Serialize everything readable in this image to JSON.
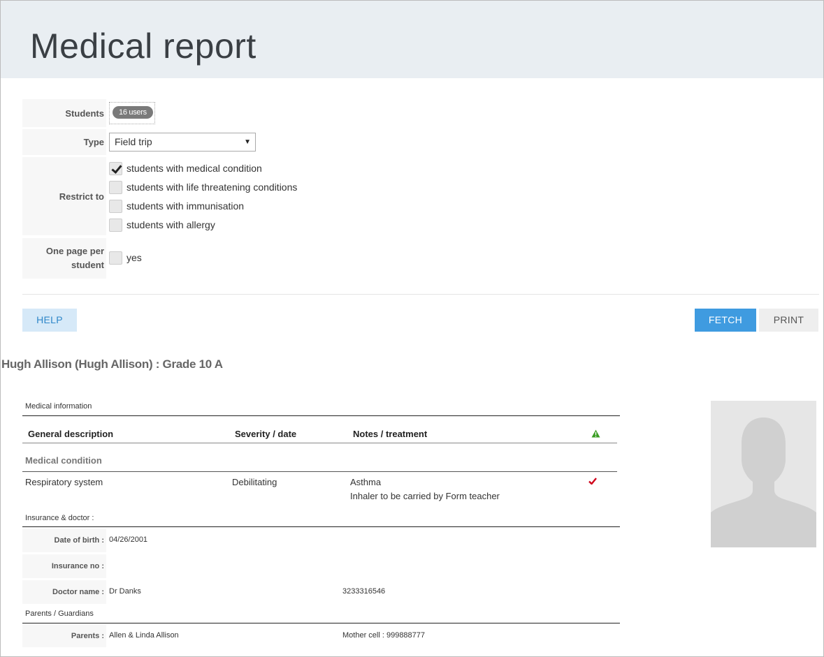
{
  "page": {
    "title": "Medical report"
  },
  "form": {
    "students_label": "Students",
    "students_value": "16 users",
    "type_label": "Type",
    "type_value": "Field trip",
    "restrict_label": "Restrict to",
    "restrict_options": [
      {
        "label": "students with medical condition",
        "checked": true
      },
      {
        "label": "students with life threatening conditions",
        "checked": false
      },
      {
        "label": "students with immunisation",
        "checked": false
      },
      {
        "label": "students with allergy",
        "checked": false
      }
    ],
    "one_page_label": "One page per student",
    "one_page_option": {
      "label": "yes",
      "checked": false
    }
  },
  "buttons": {
    "help": "HELP",
    "fetch": "FETCH",
    "print": "PRINT"
  },
  "student": {
    "title": "Hugh Allison (Hugh Allison) : Grade 10 A",
    "medical_info_label": "Medical information",
    "columns": [
      "General description",
      "Severity / date",
      "Notes / treatment"
    ],
    "section_condition": "Medical condition",
    "rows": [
      {
        "description": "Respiratory system",
        "severity": "Debilitating",
        "notes": "Asthma",
        "treatment": "Inhaler to be carried by Form teacher",
        "flagged": true
      }
    ],
    "insurance_label": "Insurance & doctor :",
    "dob_label": "Date of birth :",
    "dob_value": "04/26/2001",
    "insurance_no_label": "Insurance no :",
    "insurance_no_value": "",
    "doctor_label": "Doctor name :",
    "doctor_value": "Dr Danks",
    "doctor_phone": "3233316546",
    "parents_section_label": "Parents / Guardians",
    "parents_label": "Parents :",
    "parents_value": "Allen & Linda Allison",
    "mother_cell": "Mother cell : 999888777"
  },
  "icons": {
    "warning": "warning-triangle-icon",
    "check": "check-icon",
    "avatar": "avatar-placeholder"
  },
  "colors": {
    "accent": "#3f9be0",
    "warning_green": "#3a9d23",
    "check_red": "#d0021b",
    "header_bg": "#e9eef2"
  }
}
